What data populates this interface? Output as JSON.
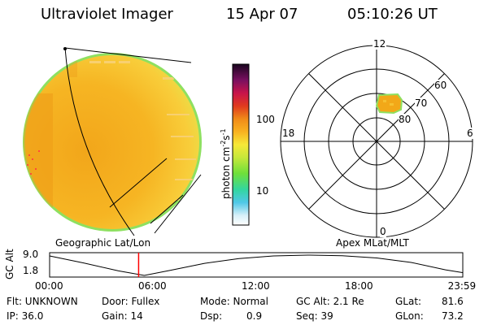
{
  "header": {
    "instrument": "Ultraviolet Imager",
    "date": "15 Apr 07",
    "time": "05:10:26 UT"
  },
  "panels": {
    "left_caption": "Geographic Lat/Lon",
    "right_caption": "Apex MLat/MLT"
  },
  "colorbar": {
    "unit_label": "photon cm",
    "unit_exp1": "-2",
    "unit_mid": "s",
    "unit_exp2": "-1",
    "tick_100": "100",
    "tick_10": "10"
  },
  "polar": {
    "mlt_top": "12",
    "mlt_left": "18",
    "mlt_right": "6",
    "mlt_bottom": "0",
    "mlat_60": "60",
    "mlat_70": "70",
    "mlat_80": "80"
  },
  "timeline": {
    "ylabel_gc": "GC",
    "ylabel_alt": "Alt",
    "y_max": "9.0",
    "y_min": "1.8",
    "ticks": [
      "00:00",
      "06:00",
      "12:00",
      "18:00",
      "23:59"
    ]
  },
  "info": {
    "flt": "Flt: UNKNOWN",
    "ip": "IP: 36.0",
    "door": "Door: Fullex",
    "gain": "Gain: 14",
    "mode": "Mode: Normal",
    "dsp_label": "Dsp:",
    "dsp_value": "0.9",
    "gcalt": "GC Alt: 2.1 Re",
    "seq": "Seq: 39",
    "glat_label": "GLat:",
    "glat_value": "81.6",
    "glon_label": "GLon:",
    "glon_value": "73.2"
  },
  "colors": {
    "disk_fill": "#f5b21f",
    "disk_edge": "#8ee060",
    "auroral_patch": "#f2a818",
    "current_time_marker": "#ff0000"
  },
  "chart_data": {
    "type": "line",
    "title": "",
    "xlabel": "",
    "ylabel": "GC Alt",
    "x_ticks": [
      "00:00",
      "06:00",
      "12:00",
      "18:00",
      "23:59"
    ],
    "x_hours": [
      0,
      2,
      4,
      5.5,
      7,
      9,
      11,
      13,
      15,
      17,
      19,
      21,
      23,
      23.98
    ],
    "y_values": [
      8.7,
      6.2,
      3.4,
      1.8,
      3.6,
      6.1,
      7.8,
      8.7,
      9.0,
      8.8,
      8.0,
      6.4,
      3.8,
      2.8
    ],
    "ylim": [
      1.8,
      9.0
    ],
    "current_time_hours": 5.17,
    "grid": false
  }
}
